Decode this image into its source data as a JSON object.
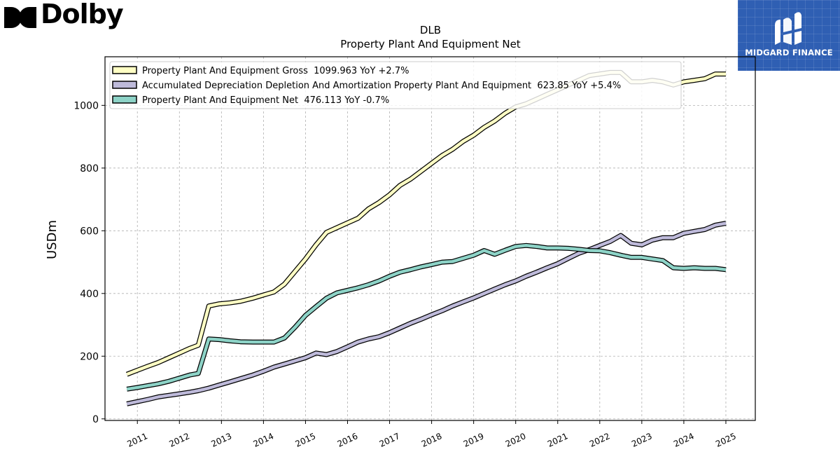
{
  "brand": {
    "name": "Dolby",
    "logo_icon": "dolby-double-d-icon"
  },
  "partner": {
    "name": "MIDGARD FINANCE",
    "icon": "midgard-m-icon",
    "color": "#2f5fb3"
  },
  "chart_data": {
    "type": "line",
    "title": "DLB",
    "subtitle": "Property Plant And Equipment Net",
    "xlabel": "",
    "ylabel": "USDm",
    "xlim": [
      2010.23,
      2025.7
    ],
    "ylim": [
      -5,
      1155
    ],
    "yticks": [
      0,
      200,
      400,
      600,
      800,
      1000
    ],
    "xticks": [
      "2011",
      "2012",
      "2013",
      "2014",
      "2015",
      "2016",
      "2017",
      "2018",
      "2019",
      "2020",
      "2021",
      "2022",
      "2023",
      "2024",
      "2025"
    ],
    "grid": true,
    "legend_position": "top-left",
    "series": [
      {
        "name": "Property Plant And Equipment Gross  1099.963 YoY +2.7%",
        "color": "#ffffc4",
        "x": [
          2010.75,
          2011.0,
          2011.25,
          2011.5,
          2011.75,
          2012.0,
          2012.25,
          2012.45,
          2012.7,
          2012.95,
          2013.2,
          2013.45,
          2013.75,
          2014.0,
          2014.25,
          2014.5,
          2014.75,
          2015.0,
          2015.25,
          2015.5,
          2015.75,
          2016.0,
          2016.25,
          2016.5,
          2016.75,
          2017.0,
          2017.25,
          2017.5,
          2017.75,
          2018.0,
          2018.25,
          2018.5,
          2018.75,
          2019.0,
          2019.25,
          2019.5,
          2019.75,
          2020.0,
          2020.25,
          2020.5,
          2020.75,
          2021.0,
          2021.25,
          2021.5,
          2021.75,
          2022.0,
          2022.25,
          2022.5,
          2022.75,
          2023.0,
          2023.25,
          2023.5,
          2023.75,
          2024.0,
          2024.25,
          2024.5,
          2024.75,
          2025.0
        ],
        "values": [
          142,
          155,
          168,
          180,
          195,
          210,
          225,
          235,
          360,
          367,
          370,
          375,
          385,
          395,
          405,
          430,
          470,
          510,
          555,
          595,
          610,
          625,
          640,
          670,
          690,
          715,
          745,
          765,
          790,
          815,
          840,
          860,
          885,
          905,
          930,
          950,
          975,
          995,
          1005,
          1020,
          1035,
          1050,
          1065,
          1080,
          1095,
          1100,
          1105,
          1105,
          1075,
          1075,
          1080,
          1075,
          1065,
          1075,
          1080,
          1085,
          1100,
          1100
        ]
      },
      {
        "name": "Accumulated Depreciation Depletion And Amortization Property Plant And Equipment  623.85 YoY +5.4%",
        "color": "#bebada",
        "x": [
          2010.75,
          2011.0,
          2011.25,
          2011.5,
          2011.75,
          2012.0,
          2012.25,
          2012.45,
          2012.7,
          2012.95,
          2013.2,
          2013.45,
          2013.75,
          2014.0,
          2014.25,
          2014.5,
          2014.75,
          2015.0,
          2015.25,
          2015.5,
          2015.75,
          2016.0,
          2016.25,
          2016.5,
          2016.75,
          2017.0,
          2017.25,
          2017.5,
          2017.75,
          2018.0,
          2018.25,
          2018.5,
          2018.75,
          2019.0,
          2019.25,
          2019.5,
          2019.75,
          2020.0,
          2020.25,
          2020.5,
          2020.75,
          2021.0,
          2021.25,
          2021.5,
          2021.75,
          2022.0,
          2022.25,
          2022.5,
          2022.75,
          2023.0,
          2023.25,
          2023.5,
          2023.75,
          2024.0,
          2024.25,
          2024.5,
          2024.75,
          2025.0
        ],
        "values": [
          48,
          55,
          62,
          70,
          75,
          80,
          85,
          90,
          98,
          108,
          118,
          128,
          140,
          152,
          165,
          175,
          185,
          195,
          210,
          205,
          215,
          230,
          245,
          255,
          262,
          275,
          290,
          305,
          318,
          332,
          345,
          360,
          373,
          386,
          400,
          414,
          428,
          440,
          455,
          468,
          482,
          495,
          512,
          528,
          540,
          553,
          566,
          585,
          560,
          555,
          570,
          578,
          578,
          592,
          598,
          604,
          618,
          624
        ]
      },
      {
        "name": "Property Plant And Equipment Net  476.113 YoY -0.7%",
        "color": "#8dd3c7",
        "x": [
          2010.75,
          2011.0,
          2011.25,
          2011.5,
          2011.75,
          2012.0,
          2012.25,
          2012.45,
          2012.7,
          2012.95,
          2013.2,
          2013.45,
          2013.75,
          2014.0,
          2014.25,
          2014.5,
          2014.75,
          2015.0,
          2015.25,
          2015.5,
          2015.75,
          2016.0,
          2016.25,
          2016.5,
          2016.75,
          2017.0,
          2017.25,
          2017.5,
          2017.75,
          2018.0,
          2018.25,
          2018.5,
          2018.75,
          2019.0,
          2019.25,
          2019.5,
          2019.75,
          2020.0,
          2020.25,
          2020.5,
          2020.75,
          2021.0,
          2021.25,
          2021.5,
          2021.75,
          2022.0,
          2022.25,
          2022.5,
          2022.75,
          2023.0,
          2023.25,
          2023.5,
          2023.75,
          2024.0,
          2024.25,
          2024.5,
          2024.75,
          2025.0
        ],
        "values": [
          95,
          100,
          106,
          112,
          120,
          130,
          140,
          145,
          255,
          253,
          249,
          246,
          245,
          245,
          245,
          258,
          292,
          330,
          358,
          385,
          402,
          410,
          418,
          428,
          440,
          455,
          468,
          476,
          485,
          492,
          500,
          502,
          512,
          522,
          537,
          525,
          538,
          550,
          553,
          550,
          545,
          545,
          544,
          541,
          537,
          536,
          530,
          522,
          515,
          515,
          510,
          505,
          482,
          480,
          482,
          480,
          480,
          476
        ]
      }
    ]
  }
}
